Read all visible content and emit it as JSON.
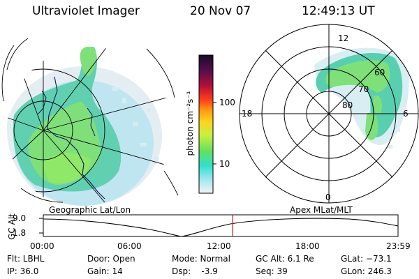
{
  "header": {
    "instrument": "Ultraviolet Imager",
    "date": "20 Nov 07",
    "time": "12:49:13 UT"
  },
  "left_panel": {
    "label": "Geographic Lat/Lon"
  },
  "right_panel": {
    "label": "Apex MLat/MLT",
    "mlt_labels": [
      "12",
      "18",
      "6",
      "0"
    ],
    "lat_labels": [
      "60",
      "70",
      "80"
    ]
  },
  "colorbar": {
    "unit_label": "photon cm⁻²s⁻¹",
    "ticks": [
      "100",
      "10"
    ],
    "colors": [
      "#1a0a2a",
      "#5a0f4a",
      "#b0103a",
      "#ff3a1e",
      "#ff9a10",
      "#ffd21e",
      "#c8f040",
      "#60e060",
      "#30e0d0",
      "#a0e8f0",
      "#f4f4f4"
    ]
  },
  "timeline": {
    "axis_label": "GC Alt",
    "y_ticks": [
      "9.0",
      "1.8"
    ],
    "x_ticks": [
      "00:00",
      "06:00",
      "12:00",
      "18:00",
      "23:59"
    ],
    "current_time_fraction": 0.534,
    "marker_color": "#d02020"
  },
  "status": {
    "flt": "Flt: LBHL",
    "ip": "IP: 36.0",
    "door": "Door: Open",
    "gain": "Gain: 14",
    "mode": "Mode: Normal",
    "dsp": "Dsp:    -3.9",
    "gc_alt": "GC Alt: 6.1 Re",
    "seq": "Seq: 39",
    "glat": "GLat: −73.1",
    "glon": "GLon: 246.3"
  }
}
